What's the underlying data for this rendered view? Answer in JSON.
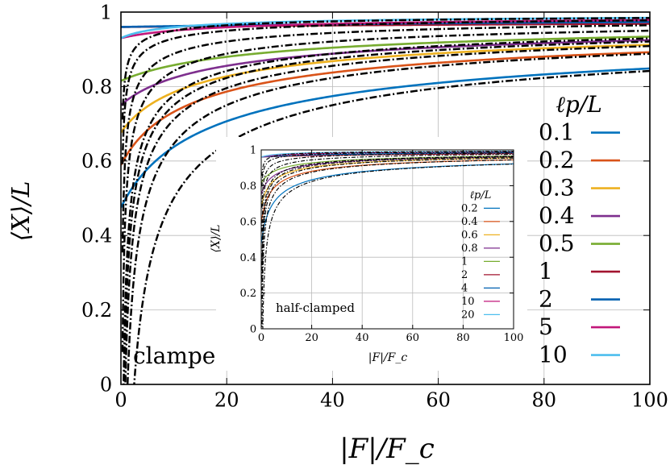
{
  "chart_data": [
    {
      "type": "line",
      "name": "main",
      "xlabel": "|F|/F_c",
      "ylabel": "⟨X⟩/L",
      "xlim": [
        0,
        100
      ],
      "ylim": [
        0,
        1
      ],
      "xticks": [
        0,
        20,
        40,
        60,
        80,
        100
      ],
      "yticks": [
        0,
        0.2,
        0.4,
        0.6,
        0.8,
        1
      ],
      "xtick_labels": [
        "0",
        "20",
        "40",
        "60",
        "80",
        "100"
      ],
      "ytick_labels": [
        "0",
        "0.2",
        "0.4",
        "0.6",
        "0.8",
        "1"
      ],
      "annotation": "clamped",
      "legend_title": "ℓp/L",
      "legend_position": "right",
      "grid": true,
      "series": [
        {
          "name": "0.1",
          "color": "#0072bd",
          "lp": 0.1
        },
        {
          "name": "0.2",
          "color": "#d95319",
          "lp": 0.2
        },
        {
          "name": "0.3",
          "color": "#edb120",
          "lp": 0.3
        },
        {
          "name": "0.4",
          "color": "#7e2f8e",
          "lp": 0.4
        },
        {
          "name": "0.5",
          "color": "#77ac30",
          "lp": 0.5
        },
        {
          "name": "1",
          "color": "#a2142f",
          "lp": 1
        },
        {
          "name": "2",
          "color": "#0060b0",
          "lp": 2
        },
        {
          "name": "5",
          "color": "#c2177a",
          "lp": 5
        },
        {
          "name": "10",
          "color": "#4dbeee",
          "lp": 10
        }
      ],
      "approximation_style": "black dash-dot"
    },
    {
      "type": "line",
      "name": "inset",
      "xlabel": "|F|/F_c",
      "ylabel": "⟨X⟩/L",
      "xlim": [
        0,
        100
      ],
      "ylim": [
        0,
        1
      ],
      "xtick_labels": [
        "0",
        "20",
        "40",
        "60",
        "80",
        "100"
      ],
      "ytick_labels": [
        "0",
        "0.2",
        "0.4",
        "0.6",
        "0.8",
        "1"
      ],
      "annotation": "half-clamped",
      "legend_title": "ℓp/L",
      "legend_position": "right",
      "grid": true,
      "series": [
        {
          "name": "0.2",
          "color": "#0072bd",
          "lp": 0.2
        },
        {
          "name": "0.4",
          "color": "#d95319",
          "lp": 0.4
        },
        {
          "name": "0.6",
          "color": "#edb120",
          "lp": 0.6
        },
        {
          "name": "0.8",
          "color": "#7e2f8e",
          "lp": 0.8
        },
        {
          "name": "1",
          "color": "#77ac30",
          "lp": 1
        },
        {
          "name": "2",
          "color": "#a2142f",
          "lp": 2
        },
        {
          "name": "4",
          "color": "#0060b0",
          "lp": 4
        },
        {
          "name": "10",
          "color": "#c2177a",
          "lp": 10
        },
        {
          "name": "20",
          "color": "#4dbeee",
          "lp": 20
        }
      ],
      "approximation_style": "black dash-dot"
    }
  ]
}
